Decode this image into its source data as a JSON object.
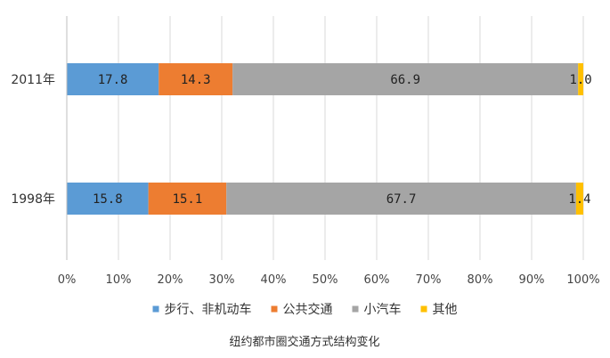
{
  "chart_data": {
    "type": "bar",
    "orientation": "horizontal",
    "stacked": true,
    "categories": [
      "2011年",
      "1998年"
    ],
    "series": [
      {
        "name": "步行、非机动车",
        "values": [
          17.8,
          15.8
        ],
        "labels": [
          "17.8",
          "15.8"
        ],
        "color": "#5B9BD5"
      },
      {
        "name": "公共交通",
        "values": [
          14.3,
          15.1
        ],
        "labels": [
          "14.3",
          "15.1"
        ],
        "color": "#ED7D31"
      },
      {
        "name": "小汽车",
        "values": [
          66.9,
          67.7
        ],
        "labels": [
          "66.9",
          "67.7"
        ],
        "color": "#A5A5A5"
      },
      {
        "name": "其他",
        "values": [
          1.0,
          1.4
        ],
        "labels": [
          "1.0",
          "1.4"
        ],
        "color": "#FFC000"
      }
    ],
    "xlim": [
      0,
      100
    ],
    "xticks": [
      "0%",
      "10%",
      "20%",
      "30%",
      "40%",
      "50%",
      "60%",
      "70%",
      "80%",
      "90%",
      "100%"
    ],
    "grid": true,
    "legend_position": "bottom",
    "caption": "纽约都市圈交通方式结构变化"
  }
}
